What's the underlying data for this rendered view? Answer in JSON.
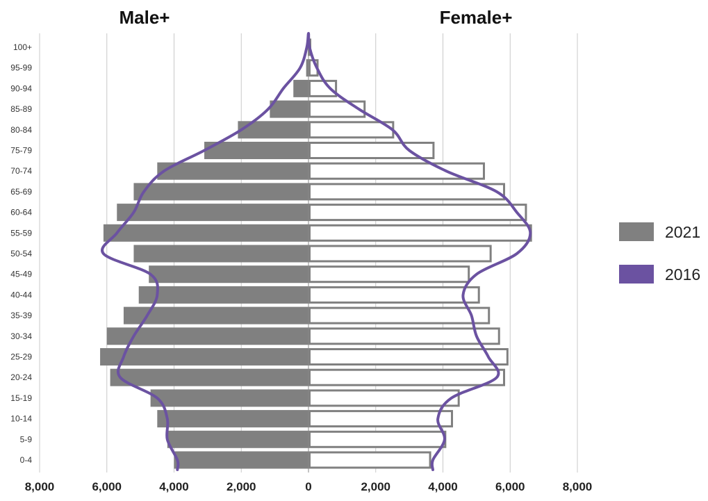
{
  "chart_data": {
    "type": "bar",
    "orientation": "horizontal",
    "subtype": "population-pyramid",
    "side_titles": {
      "left": "Male+",
      "right": "Female+"
    },
    "categories": [
      "0-4",
      "5-9",
      "10-14",
      "15-19",
      "20-24",
      "25-29",
      "30-34",
      "35-39",
      "40-44",
      "45-49",
      "50-54",
      "55-59",
      "60-64",
      "65-69",
      "70-74",
      "75-79",
      "80-84",
      "85-89",
      "90-94",
      "95-99",
      "100+"
    ],
    "x_ticks": [
      "8,000",
      "6,000",
      "4,000",
      "2,000",
      "0",
      "2,000",
      "4,000",
      "6,000",
      "8,000"
    ],
    "xlim": [
      -8000,
      8000
    ],
    "grid": true,
    "legend_position": "right",
    "series": [
      {
        "name": "2021",
        "kind": "bars",
        "color": "#808080",
        "male": [
          4000,
          4200,
          4500,
          4700,
          5900,
          6200,
          6000,
          5500,
          5050,
          4750,
          5200,
          6100,
          5700,
          5200,
          4500,
          3100,
          2100,
          1150,
          450,
          70,
          20
        ],
        "female": [
          3650,
          4100,
          4300,
          4500,
          5850,
          5950,
          5700,
          5400,
          5100,
          4800,
          5450,
          6650,
          6500,
          5850,
          5250,
          3750,
          2550,
          1700,
          850,
          300,
          50
        ]
      },
      {
        "name": "2016",
        "kind": "line",
        "color": "#6b52a1",
        "male": [
          3900,
          4200,
          4200,
          4500,
          5600,
          5500,
          5200,
          4800,
          4500,
          4700,
          6100,
          5700,
          5200,
          4900,
          4300,
          3100,
          2000,
          1200,
          750,
          250,
          50
        ],
        "female": [
          3700,
          4050,
          3850,
          4250,
          5600,
          5350,
          5000,
          4850,
          4600,
          5000,
          6200,
          6600,
          6200,
          5600,
          4100,
          3000,
          2500,
          1500,
          650,
          250,
          30
        ]
      }
    ]
  }
}
